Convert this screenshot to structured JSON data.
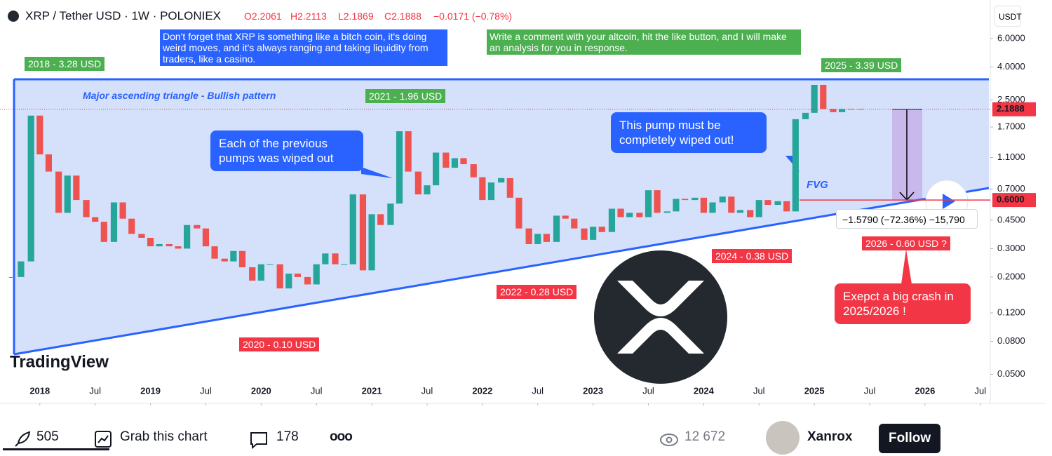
{
  "header": {
    "symbol": "XRP / Tether USD · 1W · POLONIEX",
    "open": "O2.2061",
    "high": "H2.2113",
    "low": "L2.1869",
    "close": "C2.1888",
    "change": "−0.0171 (−0.78%)",
    "currency": "USDT"
  },
  "chart_data": {
    "type": "candlestick",
    "color_up": "#26a69a",
    "color_down": "#ef5350",
    "log_scale": true,
    "x": [
      2017.75,
      2017.83,
      2017.92,
      2018.0,
      2018.08,
      2018.17,
      2018.25,
      2018.33,
      2018.42,
      2018.5,
      2018.58,
      2018.67,
      2018.75,
      2018.83,
      2018.92,
      2019.0,
      2019.08,
      2019.17,
      2019.25,
      2019.33,
      2019.42,
      2019.5,
      2019.58,
      2019.67,
      2019.75,
      2019.83,
      2019.92,
      2020.0,
      2020.08,
      2020.17,
      2020.25,
      2020.33,
      2020.42,
      2020.5,
      2020.58,
      2020.67,
      2020.75,
      2020.83,
      2020.92,
      2021.0,
      2021.08,
      2021.17,
      2021.25,
      2021.33,
      2021.42,
      2021.5,
      2021.58,
      2021.67,
      2021.75,
      2021.83,
      2021.92,
      2022.0,
      2022.08,
      2022.17,
      2022.25,
      2022.33,
      2022.42,
      2022.5,
      2022.58,
      2022.67,
      2022.75,
      2022.83,
      2022.92,
      2023.0,
      2023.08,
      2023.17,
      2023.25,
      2023.33,
      2023.42,
      2023.5,
      2023.58,
      2023.67,
      2023.75,
      2023.83,
      2023.92,
      2024.0,
      2024.08,
      2024.17,
      2024.25,
      2024.33,
      2024.42,
      2024.5,
      2024.58,
      2024.67,
      2024.75,
      2024.83,
      2024.92,
      2025.0,
      2025.08,
      2025.17,
      2025.25,
      2025.33,
      2025.42
    ],
    "series": [
      {
        "name": "XRP",
        "values": [
          0.2,
          0.25,
          2.0,
          1.15,
          0.9,
          0.5,
          0.85,
          0.6,
          0.47,
          0.44,
          0.33,
          0.58,
          0.46,
          0.37,
          0.35,
          0.31,
          0.32,
          0.31,
          0.3,
          0.42,
          0.4,
          0.31,
          0.26,
          0.25,
          0.29,
          0.23,
          0.19,
          0.24,
          0.24,
          0.17,
          0.21,
          0.2,
          0.18,
          0.24,
          0.28,
          0.24,
          0.24,
          0.65,
          0.22,
          0.49,
          0.42,
          0.57,
          1.6,
          0.9,
          0.65,
          0.74,
          1.18,
          0.95,
          1.09,
          1.0,
          0.83,
          0.6,
          0.77,
          0.82,
          0.62,
          0.4,
          0.32,
          0.37,
          0.33,
          0.48,
          0.46,
          0.4,
          0.34,
          0.41,
          0.38,
          0.53,
          0.47,
          0.5,
          0.47,
          0.69,
          0.5,
          0.51,
          0.61,
          0.6,
          0.62,
          0.5,
          0.58,
          0.63,
          0.5,
          0.52,
          0.47,
          0.6,
          0.56,
          0.59,
          0.51,
          1.9,
          2.08,
          3.1,
          2.2,
          2.1,
          2.2,
          2.2,
          2.1888
        ]
      }
    ],
    "xlim": [
      2017.64,
      2026.59
    ],
    "ylim": [
      0.033,
      10.4
    ],
    "xticks": [
      {
        "value": 2018,
        "label": "2018"
      },
      {
        "value": 2018.5,
        "label": "Jul"
      },
      {
        "value": 2019,
        "label": "2019"
      },
      {
        "value": 2019.5,
        "label": "Jul"
      },
      {
        "value": 2020,
        "label": "2020"
      },
      {
        "value": 2020.5,
        "label": "Jul"
      },
      {
        "value": 2021,
        "label": "2021"
      },
      {
        "value": 2021.5,
        "label": "Jul"
      },
      {
        "value": 2022,
        "label": "2022"
      },
      {
        "value": 2022.5,
        "label": "Jul"
      },
      {
        "value": 2023,
        "label": "2023"
      },
      {
        "value": 2023.5,
        "label": "Jul"
      },
      {
        "value": 2024,
        "label": "2024"
      },
      {
        "value": 2024.5,
        "label": "Jul"
      },
      {
        "value": 2025,
        "label": "2025"
      },
      {
        "value": 2025.5,
        "label": "Jul"
      },
      {
        "value": 2026,
        "label": "2026"
      },
      {
        "value": 2026.5,
        "label": "Jul"
      }
    ],
    "yticks": [
      {
        "value": 6,
        "label": "6.0000"
      },
      {
        "value": 4,
        "label": "4.0000"
      },
      {
        "value": 2.5,
        "label": "2.5000"
      },
      {
        "value": 1.7,
        "label": "1.7000"
      },
      {
        "value": 1.1,
        "label": "1.1000"
      },
      {
        "value": 0.7,
        "label": "0.7000"
      },
      {
        "value": 0.45,
        "label": "0.4500"
      },
      {
        "value": 0.3,
        "label": "0.3000"
      },
      {
        "value": 0.2,
        "label": "0.2000"
      },
      {
        "value": 0.12,
        "label": "0.1200"
      },
      {
        "value": 0.08,
        "label": "0.0800"
      },
      {
        "value": 0.05,
        "label": "0.0500"
      }
    ],
    "price_lines": [
      {
        "value": 2.1888,
        "label": "2.1888",
        "style": "dotted"
      },
      {
        "value": 0.6,
        "label": "0.6000",
        "style": "solid"
      }
    ]
  },
  "annotations": {
    "note_blue": "Don't forget that XRP is something like a bitch coin, it's doing weird moves, and it's always ranging and taking liquidity from traders, like a casino.",
    "note_green": "Write a comment with your altcoin, hit the like button, and I will make an analysis for you in response.",
    "pattern": "Major ascending triangle - Bullish pattern",
    "peak_2018": "2018 - 3.28 USD",
    "peak_2021": "2021 - 1.96 USD",
    "peak_2025": "2025 - 3.39 USD",
    "low_2020": "2020 - 0.10 USD",
    "low_2022": "2022 - 0.28 USD",
    "low_2024": "2024 - 0.38 USD",
    "target_2026": "2026 - 0.60 USD ?",
    "bubble_previous": "Each of the previous pumps was wiped out",
    "bubble_pump": "This pump must be completely wiped out!",
    "fvg": "FVG",
    "crash": "Exepct a big crash in 2025/2026 !",
    "measure": "−1.5790 (−72.36%) −15,790",
    "brand": "TradingView"
  },
  "footer": {
    "boosts": "505",
    "grab": "Grab this chart",
    "comments": "178",
    "views": "12 672",
    "author": "Xanrox",
    "follow": "Follow"
  }
}
